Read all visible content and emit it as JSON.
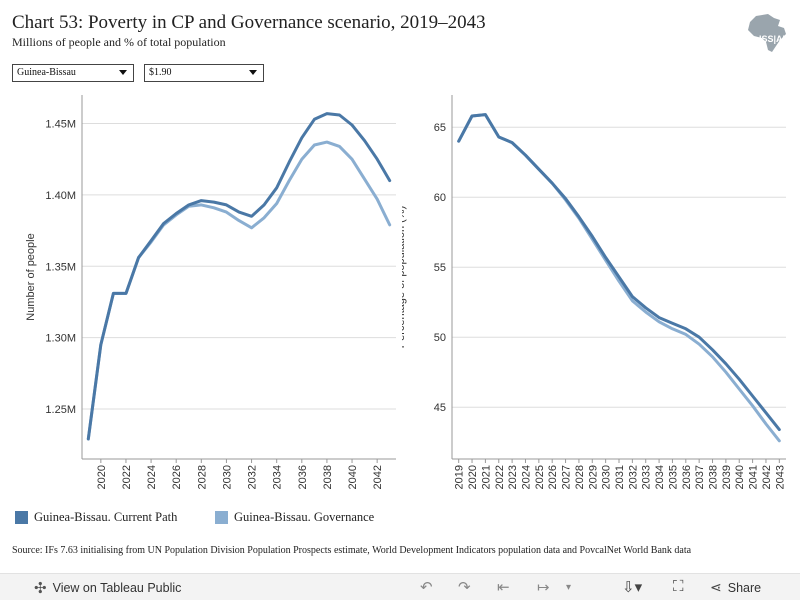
{
  "header": {
    "title": "Chart 53: Poverty in CP and Governance scenario, 2019–2043",
    "subtitle": "Millions of people and % of total population",
    "logo_text": "ISS|AF"
  },
  "filters": {
    "country": "Guinea-Bissau",
    "poverty_line": "$1.90"
  },
  "colors": {
    "current_path": "#4a78a6",
    "governance": "#8aaed1",
    "gridline": "#dddddd"
  },
  "legend": {
    "current_path": "Guinea-Bissau. Current Path",
    "governance": "Guinea-Bissau. Governance"
  },
  "source": "Source: IFs 7.63 initialising from UN Population Division Population Prospects estimate, World Development Indicators population data and PovcalNet World Bank data",
  "footer": {
    "view_label": "View on Tableau Public",
    "share_label": "Share"
  },
  "chart_data": [
    {
      "type": "line",
      "ylabel": "Number of people",
      "ylim": [
        1.215,
        1.47
      ],
      "yticks": [
        1.25,
        1.3,
        1.35,
        1.4,
        1.45
      ],
      "ytick_labels": [
        "1.25M",
        "1.30M",
        "1.35M",
        "1.40M",
        "1.45M"
      ],
      "xticks": [
        2020,
        2022,
        2024,
        2026,
        2028,
        2030,
        2032,
        2034,
        2036,
        2038,
        2040,
        2042
      ],
      "x": [
        2019,
        2020,
        2021,
        2022,
        2023,
        2024,
        2025,
        2026,
        2027,
        2028,
        2029,
        2030,
        2031,
        2032,
        2033,
        2034,
        2035,
        2036,
        2037,
        2038,
        2039,
        2040,
        2041,
        2042,
        2043
      ],
      "series": [
        {
          "name": "Guinea-Bissau. Current Path",
          "values": [
            1.229,
            1.295,
            1.331,
            1.331,
            1.356,
            1.368,
            1.38,
            1.387,
            1.393,
            1.396,
            1.395,
            1.393,
            1.388,
            1.385,
            1.393,
            1.405,
            1.423,
            1.44,
            1.453,
            1.457,
            1.456,
            1.449,
            1.438,
            1.425,
            1.41
          ]
        },
        {
          "name": "Guinea-Bissau. Governance",
          "values": [
            1.229,
            1.295,
            1.331,
            1.331,
            1.356,
            1.367,
            1.379,
            1.386,
            1.392,
            1.393,
            1.391,
            1.388,
            1.382,
            1.377,
            1.384,
            1.394,
            1.41,
            1.425,
            1.435,
            1.437,
            1.434,
            1.425,
            1.411,
            1.397,
            1.379
          ]
        }
      ]
    },
    {
      "type": "line",
      "ylabel": "Percentage of population (%)",
      "ylim": [
        41.3,
        67.3
      ],
      "yticks": [
        45,
        50,
        55,
        60,
        65
      ],
      "xticks": [
        2019,
        2020,
        2021,
        2022,
        2023,
        2024,
        2025,
        2026,
        2027,
        2028,
        2029,
        2030,
        2031,
        2032,
        2033,
        2034,
        2035,
        2036,
        2037,
        2038,
        2039,
        2040,
        2041,
        2042,
        2043
      ],
      "x": [
        2019,
        2020,
        2021,
        2022,
        2023,
        2024,
        2025,
        2026,
        2027,
        2028,
        2029,
        2030,
        2031,
        2032,
        2033,
        2034,
        2035,
        2036,
        2037,
        2038,
        2039,
        2040,
        2041,
        2042,
        2043
      ],
      "series": [
        {
          "name": "Guinea-Bissau. Current Path",
          "values": [
            64.0,
            65.8,
            65.9,
            64.3,
            63.9,
            63.0,
            62.0,
            61.0,
            59.9,
            58.6,
            57.2,
            55.7,
            54.3,
            52.9,
            52.1,
            51.4,
            51.0,
            50.6,
            50.0,
            49.1,
            48.1,
            47.0,
            45.8,
            44.6,
            43.4
          ]
        },
        {
          "name": "Guinea-Bissau. Governance",
          "values": [
            64.0,
            65.8,
            65.9,
            64.3,
            63.9,
            63.0,
            62.0,
            61.0,
            59.8,
            58.5,
            57.0,
            55.5,
            54.0,
            52.6,
            51.8,
            51.1,
            50.6,
            50.2,
            49.5,
            48.6,
            47.5,
            46.3,
            45.1,
            43.8,
            42.6
          ]
        }
      ]
    }
  ]
}
